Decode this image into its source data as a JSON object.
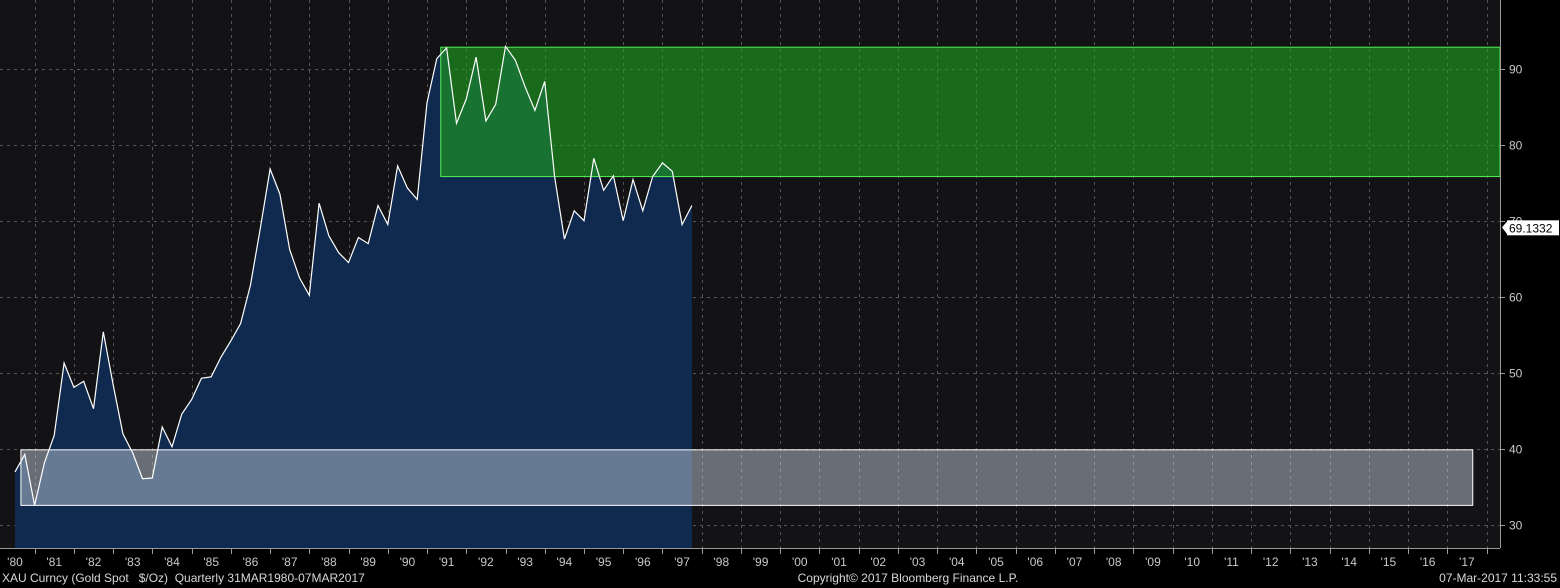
{
  "footer": {
    "left": "XAU Curncy (Gold Spot   $/Oz)  Quarterly 31MAR1980-07MAR2017",
    "center": "Copyright© 2017 Bloomberg Finance L.P.",
    "right": "07-Mar-2017 11:33:55"
  },
  "last_value_label": "69.1332",
  "chart_data": {
    "type": "area",
    "xlabel": "",
    "ylabel": "",
    "ylim": [
      27,
      99
    ],
    "xlim": [
      1980.0,
      1997.3
    ],
    "y_ticks": [
      30,
      40,
      50,
      60,
      70,
      80,
      90
    ],
    "x_ticks": [
      {
        "year": 1980,
        "label": "'80"
      },
      {
        "year": 1981,
        "label": "'81"
      },
      {
        "year": 1982,
        "label": "'82"
      },
      {
        "year": 1983,
        "label": "'83"
      },
      {
        "year": 1984,
        "label": "'84"
      },
      {
        "year": 1985,
        "label": "'85"
      },
      {
        "year": 1986,
        "label": "'86"
      },
      {
        "year": 1987,
        "label": "'87"
      },
      {
        "year": 1988,
        "label": "'88"
      },
      {
        "year": 1989,
        "label": "'89"
      },
      {
        "year": 1990,
        "label": "'90"
      },
      {
        "year": 1991,
        "label": "'91"
      },
      {
        "year": 1992,
        "label": "'92"
      },
      {
        "year": 1993,
        "label": "'93"
      },
      {
        "year": 1994,
        "label": "'94"
      },
      {
        "year": 1995,
        "label": "'95"
      },
      {
        "year": 1996,
        "label": "'96"
      },
      {
        "year": 1997,
        "label": "'97"
      },
      {
        "year": 1998,
        "label": "'98"
      },
      {
        "year": 1999,
        "label": "'99"
      },
      {
        "year": 2000,
        "label": "'00"
      },
      {
        "year": 2001,
        "label": "'01"
      },
      {
        "year": 2002,
        "label": "'02"
      },
      {
        "year": 2003,
        "label": "'03"
      },
      {
        "year": 2004,
        "label": "'04"
      },
      {
        "year": 2005,
        "label": "'05"
      },
      {
        "year": 2006,
        "label": "'06"
      },
      {
        "year": 2007,
        "label": "'07"
      },
      {
        "year": 2008,
        "label": "'08"
      },
      {
        "year": 2009,
        "label": "'09"
      },
      {
        "year": 2010,
        "label": "'10"
      },
      {
        "year": 2011,
        "label": "'11"
      },
      {
        "year": 2012,
        "label": "'12"
      },
      {
        "year": 2013,
        "label": "'13"
      },
      {
        "year": 2014,
        "label": "'14"
      },
      {
        "year": 2015,
        "label": "'15"
      },
      {
        "year": 2016,
        "label": "'16"
      },
      {
        "year": 2017,
        "label": "'17"
      }
    ],
    "grid": true,
    "series": [
      {
        "color": "#ffffff",
        "fill": "#0f2a4e",
        "x": [
          1980.0,
          1980.25,
          1980.5,
          1980.75,
          1981.0,
          1981.25,
          1981.5,
          1981.75,
          1982.0,
          1982.25,
          1982.5,
          1982.75,
          1983.0,
          1983.25,
          1983.5,
          1983.75,
          1984.0,
          1984.25,
          1984.5,
          1984.75,
          1985.0,
          1985.25,
          1985.5,
          1985.75,
          1986.0,
          1986.25,
          1986.5,
          1986.75,
          1987.0,
          1987.25,
          1987.5,
          1987.75,
          1988.0,
          1988.25,
          1988.5,
          1988.75,
          1989.0,
          1989.25,
          1989.5,
          1989.75,
          1990.0,
          1990.25,
          1990.5,
          1990.75,
          1991.0,
          1991.25,
          1991.5,
          1991.75,
          1992.0,
          1992.25,
          1992.5,
          1992.75,
          1993.0,
          1993.25,
          1993.5,
          1993.75,
          1994.0,
          1994.25,
          1994.5,
          1994.75,
          1995.0,
          1995.25,
          1995.5,
          1995.75,
          1996.0,
          1996.25,
          1996.5,
          1996.75,
          1997.0,
          1997.25
        ],
        "values": [
          37.0,
          39.3,
          32.6,
          38.2,
          41.8,
          51.3,
          48.1,
          48.9,
          45.3,
          55.4,
          48.5,
          42.0,
          39.5,
          36.1,
          36.2,
          42.9,
          40.3,
          44.6,
          46.5,
          49.3,
          49.5,
          52.1,
          54.2,
          56.5,
          61.5,
          69.0,
          76.8,
          73.5,
          66.2,
          62.5,
          60.2,
          72.3,
          68.0,
          65.8,
          64.5,
          67.8,
          67.0,
          72.0,
          69.5,
          77.2,
          74.3,
          72.8,
          85.5,
          91.3,
          92.7,
          82.8,
          86.0,
          91.5,
          83.1,
          85.3,
          92.9,
          91.1,
          87.6,
          84.5,
          88.3,
          75.8,
          67.6,
          71.3,
          70.0,
          78.2,
          74.0,
          75.9,
          70.0,
          75.4,
          71.3,
          75.8,
          77.6,
          76.5,
          69.5,
          72.0
        ]
      }
    ]
  }
}
